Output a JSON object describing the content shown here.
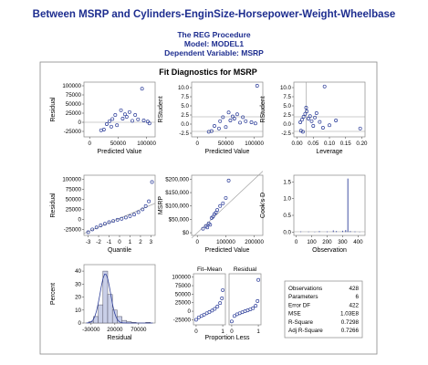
{
  "header": {
    "title": "Between MSRP and Cylinders-EnginSize-Horsepower-Weight-Wheelbase",
    "procedure": "The REG Procedure",
    "model": "Model: MODEL1",
    "dependent": "Dependent Variable: MSRP"
  },
  "panel_title": "Fit Diagnostics for MSRP",
  "colors": {
    "title": "#1d2d8f",
    "marker": "#2e3f9a",
    "line": "#999999",
    "frame": "#888888",
    "bar": "#c9cfe8"
  },
  "chart_data": [
    {
      "id": "residual-vs-predicted",
      "type": "scatter",
      "xlabel": "Predicted Value",
      "ylabel": "Residual",
      "xticks": [
        "0",
        "50000",
        "100000"
      ],
      "yticks": [
        "-25000",
        "0",
        "25000",
        "50000",
        "75000",
        "100000"
      ],
      "xlim": [
        -10000,
        115000
      ],
      "ylim": [
        -40000,
        110000
      ],
      "points": [
        [
          30000,
          -5000
        ],
        [
          35000,
          3000
        ],
        [
          40000,
          9000
        ],
        [
          45000,
          20000
        ],
        [
          55000,
          33000
        ],
        [
          62000,
          22000
        ],
        [
          70000,
          28000
        ],
        [
          80000,
          20000
        ],
        [
          92000,
          92000
        ],
        [
          95000,
          5000
        ],
        [
          102000,
          2000
        ],
        [
          105000,
          -3000
        ],
        [
          25000,
          -20000
        ],
        [
          20000,
          -22000
        ],
        [
          38000,
          -12000
        ],
        [
          48000,
          -8000
        ],
        [
          58000,
          10000
        ],
        [
          65000,
          15000
        ],
        [
          85000,
          8000
        ],
        [
          75000,
          4000
        ]
      ],
      "reference_line": 0
    },
    {
      "id": "rstudent-vs-predicted",
      "type": "scatter",
      "xlabel": "Predicted Value",
      "ylabel": "RStudent",
      "xticks": [
        "0",
        "50000",
        "100000"
      ],
      "yticks": [
        "-2.5",
        "0.0",
        "2.5",
        "5.0",
        "7.5",
        "10.0"
      ],
      "xlim": [
        -10000,
        115000
      ],
      "ylim": [
        -3.5,
        11.5
      ],
      "points": [
        [
          30000,
          -0.5
        ],
        [
          40000,
          0.8
        ],
        [
          45000,
          1.9
        ],
        [
          55000,
          3.2
        ],
        [
          62000,
          2.1
        ],
        [
          70000,
          2.7
        ],
        [
          80000,
          1.9
        ],
        [
          105000,
          10.5
        ],
        [
          95000,
          0.5
        ],
        [
          102000,
          0.2
        ],
        [
          25000,
          -1.9
        ],
        [
          20000,
          -2.1
        ],
        [
          38000,
          -1.2
        ],
        [
          50000,
          -0.8
        ],
        [
          58000,
          1.0
        ],
        [
          65000,
          1.5
        ],
        [
          85000,
          0.8
        ],
        [
          75000,
          0.4
        ]
      ],
      "reference_lines": [
        -2,
        2
      ]
    },
    {
      "id": "rstudent-vs-leverage",
      "type": "scatter",
      "xlabel": "Leverage",
      "ylabel": "RStudent",
      "xticks": [
        "0.00",
        "0.05",
        "0.10",
        "0.15",
        "0.20"
      ],
      "yticks": [
        "-2.5",
        "0.0",
        "2.5",
        "5.0",
        "7.5",
        "10.0"
      ],
      "xlim": [
        -0.01,
        0.21
      ],
      "ylim": [
        -3.5,
        11.5
      ],
      "points": [
        [
          0.01,
          0.5
        ],
        [
          0.015,
          1.2
        ],
        [
          0.02,
          2.0
        ],
        [
          0.025,
          2.8
        ],
        [
          0.03,
          3.5
        ],
        [
          0.035,
          1.5
        ],
        [
          0.04,
          2.2
        ],
        [
          0.045,
          0.8
        ],
        [
          0.05,
          -0.5
        ],
        [
          0.055,
          1.8
        ],
        [
          0.06,
          3.0
        ],
        [
          0.07,
          0.6
        ],
        [
          0.08,
          -1.0
        ],
        [
          0.085,
          10.3
        ],
        [
          0.1,
          -0.3
        ],
        [
          0.12,
          1.0
        ],
        [
          0.195,
          -1.2
        ],
        [
          0.012,
          -1.8
        ],
        [
          0.018,
          -2.1
        ],
        [
          0.028,
          4.5
        ]
      ],
      "reference_lines_h": [
        -2,
        2
      ],
      "reference_line_v": 0.028
    },
    {
      "id": "residual-qq",
      "type": "scatter",
      "xlabel": "Quantile",
      "ylabel": "Residual",
      "xticks": [
        "-3",
        "-2",
        "-1",
        "0",
        "1",
        "2",
        "3"
      ],
      "yticks": [
        "-25000",
        "0",
        "25000",
        "50000",
        "75000",
        "100000"
      ],
      "xlim": [
        -3.4,
        3.4
      ],
      "ylim": [
        -40000,
        110000
      ],
      "points": [
        [
          -3,
          -32000
        ],
        [
          -2.6,
          -25000
        ],
        [
          -2.2,
          -20000
        ],
        [
          -1.8,
          -15000
        ],
        [
          -1.4,
          -11000
        ],
        [
          -1,
          -7000
        ],
        [
          -0.6,
          -4000
        ],
        [
          -0.2,
          -1000
        ],
        [
          0.2,
          1500
        ],
        [
          0.6,
          4500
        ],
        [
          1,
          8000
        ],
        [
          1.4,
          12000
        ],
        [
          1.8,
          18000
        ],
        [
          2.2,
          25000
        ],
        [
          2.5,
          33000
        ],
        [
          2.8,
          45000
        ],
        [
          3.1,
          93000
        ]
      ],
      "fit_line": [
        [
          -3.4,
          -35000
        ],
        [
          3.4,
          40000
        ]
      ]
    },
    {
      "id": "msrp-vs-predicted",
      "type": "scatter",
      "xlabel": "Predicted Value",
      "ylabel": "MSRP",
      "xticks": [
        "0",
        "100000",
        "200000"
      ],
      "yticks": [
        "$0",
        "$50,000",
        "$100,000",
        "$150,000",
        "$200,000"
      ],
      "xlim": [
        -20000,
        230000
      ],
      "ylim": [
        -10000,
        215000
      ],
      "points": [
        [
          20000,
          15000
        ],
        [
          30000,
          25000
        ],
        [
          40000,
          35000
        ],
        [
          50000,
          55000
        ],
        [
          60000,
          70000
        ],
        [
          70000,
          85000
        ],
        [
          80000,
          100000
        ],
        [
          90000,
          110000
        ],
        [
          100000,
          130000
        ],
        [
          110000,
          195000
        ],
        [
          45000,
          30000
        ],
        [
          55000,
          60000
        ],
        [
          35000,
          20000
        ],
        [
          65000,
          75000
        ]
      ],
      "fit_line": [
        [
          -20000,
          -20000
        ],
        [
          230000,
          230000
        ]
      ]
    },
    {
      "id": "cooks-d",
      "type": "bar",
      "xlabel": "Observation",
      "ylabel": "Cook's D",
      "xticks": [
        "0",
        "100",
        "200",
        "300",
        "400"
      ],
      "yticks": [
        "0.0",
        "0.5",
        "1.0",
        "1.5"
      ],
      "xlim": [
        -15,
        445
      ],
      "ylim": [
        -0.1,
        1.7
      ],
      "spikes": [
        [
          30,
          0.02
        ],
        [
          80,
          0.015
        ],
        [
          120,
          0.01
        ],
        [
          150,
          0.03
        ],
        [
          200,
          0.02
        ],
        [
          240,
          0.05
        ],
        [
          260,
          0.03
        ],
        [
          300,
          0.04
        ],
        [
          320,
          0.06
        ],
        [
          334,
          1.6
        ],
        [
          350,
          0.03
        ],
        [
          380,
          0.02
        ],
        [
          410,
          0.01
        ]
      ],
      "reference_line": 0.01
    },
    {
      "id": "residual-histogram",
      "type": "bar",
      "xlabel": "Residual",
      "ylabel": "Percent",
      "xticks": [
        "-30000",
        "20000",
        "70000"
      ],
      "yticks": [
        "0",
        "10",
        "20",
        "30",
        "40"
      ],
      "xlim": [
        -45000,
        105000
      ],
      "ylim": [
        0,
        45
      ],
      "bins": [
        [
          -35000,
          -25000,
          1
        ],
        [
          -25000,
          -15000,
          5
        ],
        [
          -15000,
          -5000,
          14
        ],
        [
          -5000,
          5000,
          40
        ],
        [
          5000,
          15000,
          22
        ],
        [
          15000,
          25000,
          10
        ],
        [
          25000,
          35000,
          5
        ],
        [
          35000,
          45000,
          2
        ],
        [
          45000,
          55000,
          1
        ],
        [
          55000,
          65000,
          0.5
        ],
        [
          85000,
          95000,
          0.5
        ]
      ]
    },
    {
      "id": "residual-fit-spread",
      "type": "scatter",
      "xlabel": "Proportion Less",
      "ylabel": "",
      "panels": [
        {
          "label": "Fit–Mean"
        },
        {
          "label": "Residual"
        }
      ],
      "xticks": [
        "0",
        "1"
      ],
      "yticks": [
        "-25000",
        "0",
        "25000",
        "50000",
        "75000",
        "100000"
      ],
      "xlim": [
        -0.1,
        1.1
      ],
      "ylim": [
        -40000,
        110000
      ],
      "fit_minus_mean": [
        [
          0,
          -25000
        ],
        [
          0.1,
          -18000
        ],
        [
          0.2,
          -14000
        ],
        [
          0.3,
          -10000
        ],
        [
          0.4,
          -6000
        ],
        [
          0.5,
          -2000
        ],
        [
          0.6,
          2000
        ],
        [
          0.7,
          7000
        ],
        [
          0.8,
          14000
        ],
        [
          0.9,
          24000
        ],
        [
          0.97,
          38000
        ],
        [
          1,
          62000
        ]
      ],
      "residual": [
        [
          0,
          -30000
        ],
        [
          0.1,
          -14000
        ],
        [
          0.2,
          -9000
        ],
        [
          0.3,
          -6000
        ],
        [
          0.4,
          -3000
        ],
        [
          0.5,
          0
        ],
        [
          0.6,
          2500
        ],
        [
          0.7,
          5500
        ],
        [
          0.8,
          9000
        ],
        [
          0.9,
          16000
        ],
        [
          0.97,
          30000
        ],
        [
          1,
          92000
        ]
      ]
    },
    {
      "id": "fit-statistics",
      "type": "table",
      "rows": [
        [
          "Observations",
          "428"
        ],
        [
          "Parameters",
          "6"
        ],
        [
          "Error DF",
          "422"
        ],
        [
          "MSE",
          "1.03E8"
        ],
        [
          "R-Square",
          "0.7298"
        ],
        [
          "Adj R-Square",
          "0.7266"
        ]
      ]
    }
  ]
}
